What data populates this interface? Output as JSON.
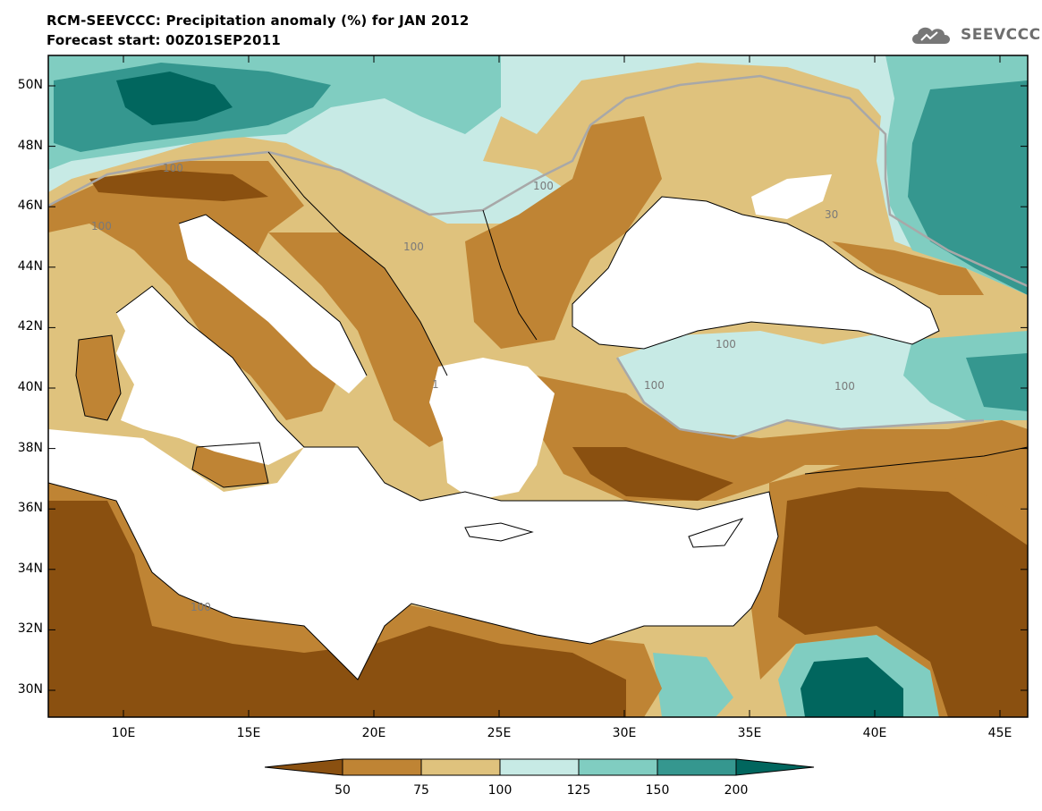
{
  "header": {
    "title_line1": "RCM-SEEVCCC: Precipitation anomaly (%) for JAN 2012",
    "title_line2": "Forecast start: 00Z01SEP2011",
    "logo_text": "SEEVCCC"
  },
  "map": {
    "lat_ticks": [
      {
        "label": "50N",
        "value": 50
      },
      {
        "label": "48N",
        "value": 48
      },
      {
        "label": "46N",
        "value": 46
      },
      {
        "label": "44N",
        "value": 44
      },
      {
        "label": "42N",
        "value": 42
      },
      {
        "label": "40N",
        "value": 40
      },
      {
        "label": "38N",
        "value": 38
      },
      {
        "label": "36N",
        "value": 36
      },
      {
        "label": "34N",
        "value": 34
      },
      {
        "label": "32N",
        "value": 32
      },
      {
        "label": "30N",
        "value": 30
      }
    ],
    "lon_ticks": [
      {
        "label": "10E",
        "value": 10
      },
      {
        "label": "15E",
        "value": 15
      },
      {
        "label": "20E",
        "value": 20
      },
      {
        "label": "25E",
        "value": 25
      },
      {
        "label": "30E",
        "value": 30
      },
      {
        "label": "35E",
        "value": 35
      },
      {
        "label": "40E",
        "value": 40
      },
      {
        "label": "45E",
        "value": 45
      }
    ],
    "contour_labels": [
      "100",
      "100",
      "100",
      "100",
      "100",
      "100",
      "100",
      "100",
      "1",
      "30"
    ]
  },
  "colorbar": {
    "tick_labels": [
      "50",
      "75",
      "100",
      "125",
      "150",
      "200"
    ],
    "colors": {
      "lt50": "#8a5010",
      "50_75": "#bf8434",
      "75_100": "#dfc27d",
      "100_125": "#c7eae5",
      "125_150": "#80cdc1",
      "150_200": "#35978f",
      "gt200": "#01665e"
    }
  }
}
